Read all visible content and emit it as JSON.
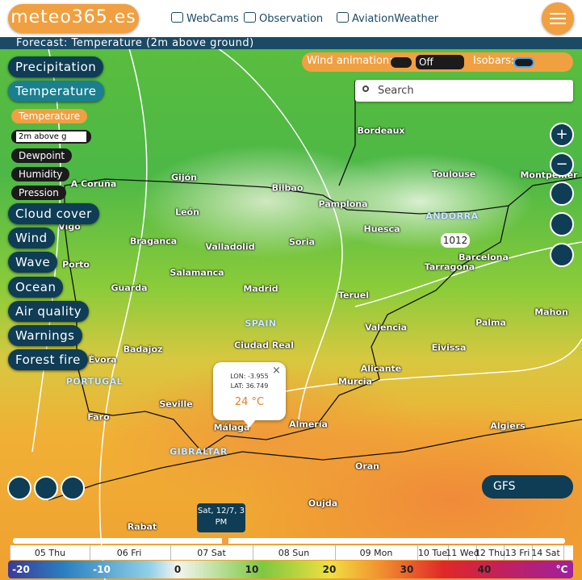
{
  "header": {
    "logo": "meteo365.es",
    "nav": [
      "WebCams",
      "Observation",
      "AviationWeather"
    ]
  },
  "forecast_title": "Forecast: Temperature (2m above ground)",
  "menu": {
    "top": [
      "Precipitation",
      "Temperature"
    ],
    "submenu": {
      "active": "Temperature",
      "level": "2m above g",
      "items": [
        "Dewpoint",
        "Humidity",
        "Pression"
      ]
    },
    "bottom": [
      "Cloud cover",
      "Wind",
      "Wave",
      "Ocean",
      "Air quality",
      "Warnings",
      "Forest fire"
    ]
  },
  "controls": {
    "wind_animation": "Wind animation:",
    "wind_option": "Off",
    "isobars": "Isobars:",
    "search": "Search"
  },
  "map": {
    "labels": [
      "Bordeaux",
      "Toulouse",
      "Montpellier",
      "A Coruña",
      "Gijón",
      "Bilbao",
      "Pamplona",
      "León",
      "Vigo",
      "ANDORRA",
      "Huesca",
      "Braganca",
      "Valladolid",
      "Soria",
      "Barcelona",
      "Porto",
      "Tarragona",
      "Salamanca",
      "Guarda",
      "Madrid",
      "Teruel",
      "Mahon",
      "SPAIN",
      "Palma",
      "Valencia",
      "Badajoz",
      "Ciudad Real",
      "Eivissa",
      "Évora",
      "Alicante",
      "PORTUGAL",
      "Murcia",
      "Seville",
      "Faro",
      "Almería",
      "Málaga",
      "Algiers",
      "GIBRALTAR",
      "Oran",
      "Oujda",
      "Rabat"
    ],
    "isobar_label": "1012"
  },
  "popup": {
    "lon": "LON: -3.955",
    "lat": "LAT: 36.749",
    "temp": "24 °C"
  },
  "model": "GFS",
  "timeline": {
    "current": "Sat, 12/7, 3 PM",
    "days": [
      "05 Thu",
      "06 Fri",
      "07 Sat",
      "08 Sun",
      "09 Mon",
      "10 Tue",
      "11 Wed",
      "12 Thu",
      "13 Fri",
      "14 Sat"
    ]
  },
  "legend": {
    "ticks": [
      -20,
      -10,
      0,
      10,
      20,
      30,
      40
    ],
    "unit": "°C"
  }
}
